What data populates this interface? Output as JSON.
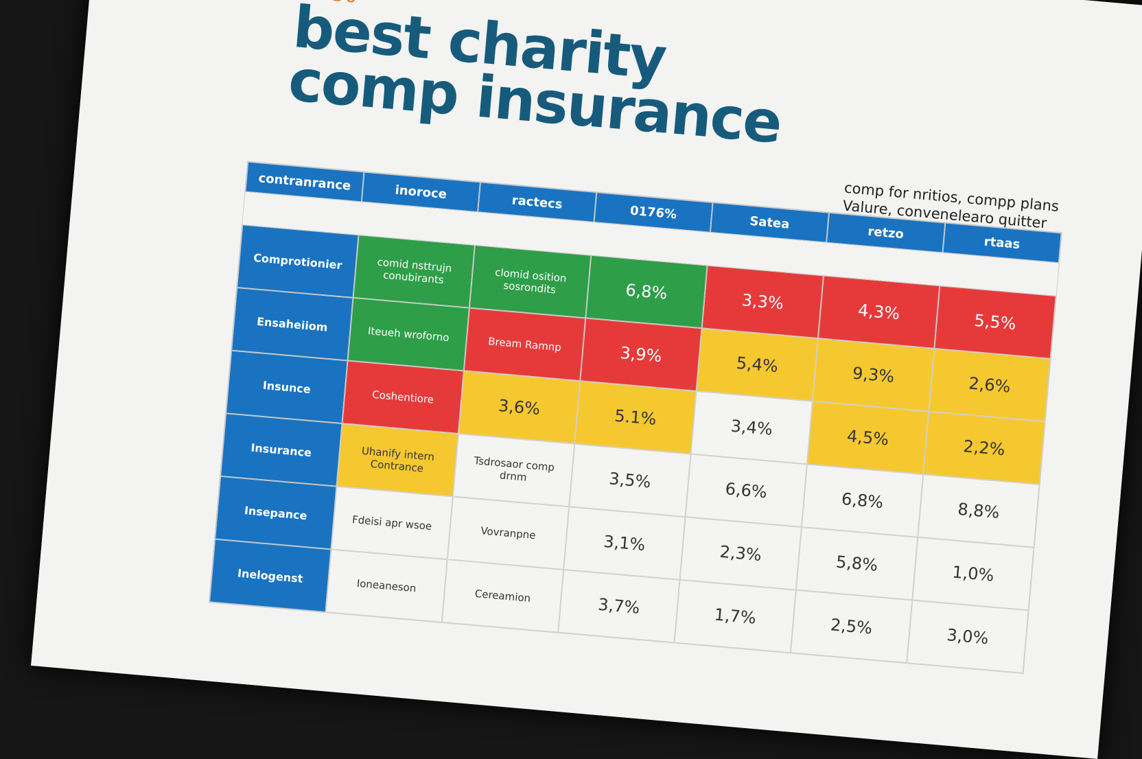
{
  "header": {
    "kicker": "best",
    "title_line1": "best charity",
    "title_line2": "comp insurance",
    "note_line1": "comp for nritios, compp plans",
    "note_line2": "Valure, convenelearo quitter"
  },
  "table": {
    "columns": [
      "contranrance",
      "inoroce",
      "ractecs",
      "0176%",
      "Satea",
      "retzo",
      "rtaas"
    ],
    "rows": [
      {
        "label": "Comprotionier",
        "cells": [
          {
            "text": "comid nsttrujn conubirants",
            "color": "#2e9e48"
          },
          {
            "text": "clomid osition sosrondits",
            "color": "#2e9e48"
          },
          {
            "text": "6,8%",
            "color": "#2e9e48"
          },
          {
            "text": "3,3%",
            "color": "#e63a3a"
          },
          {
            "text": "4,3%",
            "color": "#e63a3a"
          },
          {
            "text": "5,5%",
            "color": "#e63a3a"
          }
        ]
      },
      {
        "label": "Ensaheiiom",
        "cells": [
          {
            "text": "Iteueh wroforno",
            "color": "#2e9e48"
          },
          {
            "text": "Bream Ramnp",
            "color": "#e63a3a"
          },
          {
            "text": "3,9%",
            "color": "#e63a3a"
          },
          {
            "text": "5,4%",
            "color": "#f5c830"
          },
          {
            "text": "9,3%",
            "color": "#f5c830"
          },
          {
            "text": "2,6%",
            "color": "#f5c830"
          }
        ]
      },
      {
        "label": "Insunce",
        "cells": [
          {
            "text": "Coshentiore",
            "color": "#e63a3a"
          },
          {
            "text": "3,6%",
            "color": "#f5c830"
          },
          {
            "text": "5.1%",
            "color": "#f5c830"
          },
          {
            "text": "3,4%",
            "color": "#f4f4f2"
          },
          {
            "text": "4,5%",
            "color": "#f5c830"
          },
          {
            "text": "2,2%",
            "color": "#f5c830"
          }
        ]
      },
      {
        "label": "Insurance",
        "cells": [
          {
            "text": "Uhanify intern Contrance",
            "color": "#f5c830"
          },
          {
            "text": "Tsdrosaor comp drnm",
            "color": "#f4f4f2"
          },
          {
            "text": "3,5%",
            "color": "#f4f4f2"
          },
          {
            "text": "6,6%",
            "color": "#f4f4f2"
          },
          {
            "text": "6,8%",
            "color": "#f4f4f2"
          },
          {
            "text": "8,8%",
            "color": "#f4f4f2"
          }
        ]
      },
      {
        "label": "Insepance",
        "cells": [
          {
            "text": "Fdeisi apr wsoe",
            "color": "#f4f4f2"
          },
          {
            "text": "Vovranpne",
            "color": "#f4f4f2"
          },
          {
            "text": "3,1%",
            "color": "#f4f4f2"
          },
          {
            "text": "2,3%",
            "color": "#f4f4f2"
          },
          {
            "text": "5,8%",
            "color": "#f4f4f2"
          },
          {
            "text": "1,0%",
            "color": "#f4f4f2"
          }
        ]
      },
      {
        "label": "Inelogenst",
        "cells": [
          {
            "text": "Ioneaneson",
            "color": "#f4f4f2"
          },
          {
            "text": "Cereamion",
            "color": "#f4f4f2"
          },
          {
            "text": "3,7%",
            "color": "#f4f4f2"
          },
          {
            "text": "1,7%",
            "color": "#f4f4f2"
          },
          {
            "text": "2,5%",
            "color": "#f4f4f2"
          },
          {
            "text": "3,0%",
            "color": "#f4f4f2"
          }
        ]
      }
    ]
  }
}
